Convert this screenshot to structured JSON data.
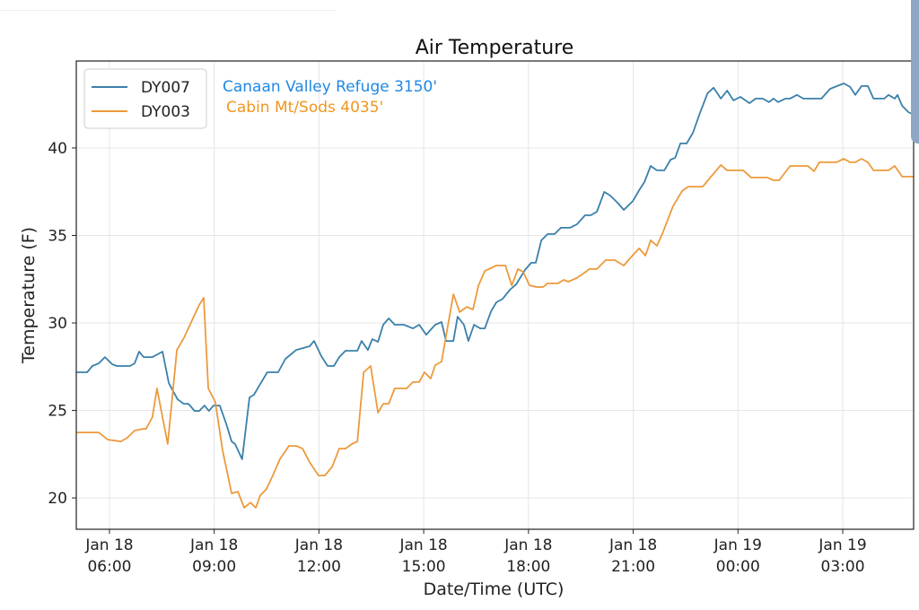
{
  "chart_data": {
    "type": "line",
    "title": "Air Temperature",
    "xlabel": "Date/Time (UTC)",
    "ylabel": "Temperature (F)",
    "xlim": [
      5.05,
      29.03
    ],
    "ylim": [
      18.21,
      44.97
    ],
    "x_unit": "hours since Jan 18 00:00 UTC",
    "grid": true,
    "legend_placement": "top-left",
    "yticks": [
      20,
      25,
      30,
      35,
      40
    ],
    "ytick_labels": [
      "20",
      "25",
      "30",
      "35",
      "40"
    ],
    "xticks": [
      {
        "value": 6,
        "line1": "Jan 18",
        "line2": "06:00"
      },
      {
        "value": 9,
        "line1": "Jan 18",
        "line2": "09:00"
      },
      {
        "value": 12,
        "line1": "Jan 18",
        "line2": "12:00"
      },
      {
        "value": 15,
        "line1": "Jan 18",
        "line2": "15:00"
      },
      {
        "value": 18,
        "line1": "Jan 18",
        "line2": "18:00"
      },
      {
        "value": 21,
        "line1": "Jan 18",
        "line2": "21:00"
      },
      {
        "value": 24,
        "line1": "Jan 19",
        "line2": "00:00"
      },
      {
        "value": 27,
        "line1": "Jan 19",
        "line2": "03:00"
      }
    ],
    "annotations": [
      {
        "text": "Canaan Valley Refuge 3150'",
        "color": "#1e88e5"
      },
      {
        "text": "Cabin Mt/Sods 4035'",
        "color": "#f0961e"
      }
    ],
    "series": [
      {
        "name": "DY007",
        "color": "#3b80aa",
        "points": [
          [
            5.05,
            27.18
          ],
          [
            5.36,
            27.18
          ],
          [
            5.51,
            27.54
          ],
          [
            5.69,
            27.69
          ],
          [
            5.87,
            28.05
          ],
          [
            6.08,
            27.64
          ],
          [
            6.21,
            27.54
          ],
          [
            6.59,
            27.54
          ],
          [
            6.72,
            27.69
          ],
          [
            6.85,
            28.36
          ],
          [
            6.98,
            28.05
          ],
          [
            7.23,
            28.05
          ],
          [
            7.52,
            28.36
          ],
          [
            7.7,
            26.56
          ],
          [
            7.95,
            25.64
          ],
          [
            8.13,
            25.38
          ],
          [
            8.26,
            25.38
          ],
          [
            8.44,
            24.97
          ],
          [
            8.57,
            24.97
          ],
          [
            8.72,
            25.28
          ],
          [
            8.85,
            24.97
          ],
          [
            8.98,
            25.28
          ],
          [
            9.16,
            25.28
          ],
          [
            9.34,
            24.26
          ],
          [
            9.5,
            23.23
          ],
          [
            9.6,
            23.08
          ],
          [
            9.8,
            22.21
          ],
          [
            10.01,
            25.74
          ],
          [
            10.14,
            25.9
          ],
          [
            10.32,
            26.51
          ],
          [
            10.52,
            27.18
          ],
          [
            10.83,
            27.18
          ],
          [
            11.04,
            27.95
          ],
          [
            11.35,
            28.46
          ],
          [
            11.73,
            28.67
          ],
          [
            11.86,
            28.97
          ],
          [
            12.07,
            28.1
          ],
          [
            12.25,
            27.54
          ],
          [
            12.43,
            27.54
          ],
          [
            12.58,
            28.05
          ],
          [
            12.76,
            28.41
          ],
          [
            13.1,
            28.41
          ],
          [
            13.22,
            28.97
          ],
          [
            13.4,
            28.46
          ],
          [
            13.53,
            29.08
          ],
          [
            13.69,
            28.92
          ],
          [
            13.84,
            29.9
          ],
          [
            14.0,
            30.26
          ],
          [
            14.17,
            29.9
          ],
          [
            14.43,
            29.9
          ],
          [
            14.69,
            29.69
          ],
          [
            14.87,
            29.9
          ],
          [
            15.07,
            29.33
          ],
          [
            15.33,
            29.9
          ],
          [
            15.51,
            30.05
          ],
          [
            15.64,
            28.97
          ],
          [
            15.85,
            28.97
          ],
          [
            15.97,
            30.36
          ],
          [
            16.15,
            29.9
          ],
          [
            16.28,
            28.97
          ],
          [
            16.44,
            29.9
          ],
          [
            16.62,
            29.69
          ],
          [
            16.75,
            29.69
          ],
          [
            16.93,
            30.67
          ],
          [
            17.08,
            31.18
          ],
          [
            17.26,
            31.38
          ],
          [
            17.47,
            31.9
          ],
          [
            17.65,
            32.21
          ],
          [
            17.9,
            33.03
          ],
          [
            18.08,
            33.44
          ],
          [
            18.21,
            33.44
          ],
          [
            18.37,
            34.72
          ],
          [
            18.55,
            35.08
          ],
          [
            18.75,
            35.08
          ],
          [
            18.93,
            35.44
          ],
          [
            19.19,
            35.44
          ],
          [
            19.39,
            35.64
          ],
          [
            19.62,
            36.15
          ],
          [
            19.78,
            36.15
          ],
          [
            19.96,
            36.36
          ],
          [
            20.17,
            37.49
          ],
          [
            20.34,
            37.28
          ],
          [
            20.55,
            36.87
          ],
          [
            20.73,
            36.46
          ],
          [
            20.99,
            36.97
          ],
          [
            21.17,
            37.59
          ],
          [
            21.32,
            38.05
          ],
          [
            21.5,
            38.97
          ],
          [
            21.68,
            38.72
          ],
          [
            21.89,
            38.72
          ],
          [
            22.07,
            39.33
          ],
          [
            22.2,
            39.44
          ],
          [
            22.35,
            40.26
          ],
          [
            22.53,
            40.26
          ],
          [
            22.71,
            40.87
          ],
          [
            22.92,
            42.05
          ],
          [
            23.13,
            43.13
          ],
          [
            23.3,
            43.44
          ],
          [
            23.51,
            42.82
          ],
          [
            23.69,
            43.28
          ],
          [
            23.87,
            42.72
          ],
          [
            24.07,
            42.92
          ],
          [
            24.33,
            42.56
          ],
          [
            24.51,
            42.82
          ],
          [
            24.71,
            42.82
          ],
          [
            24.89,
            42.62
          ],
          [
            25.02,
            42.82
          ],
          [
            25.15,
            42.62
          ],
          [
            25.36,
            42.82
          ],
          [
            25.49,
            42.82
          ],
          [
            25.69,
            43.03
          ],
          [
            25.87,
            42.82
          ],
          [
            26.39,
            42.82
          ],
          [
            26.64,
            43.38
          ],
          [
            27.03,
            43.69
          ],
          [
            27.21,
            43.49
          ],
          [
            27.36,
            43.03
          ],
          [
            27.54,
            43.54
          ],
          [
            27.72,
            43.54
          ],
          [
            27.88,
            42.82
          ],
          [
            28.19,
            42.82
          ],
          [
            28.31,
            43.03
          ],
          [
            28.49,
            42.82
          ],
          [
            28.57,
            43.03
          ],
          [
            28.7,
            42.41
          ],
          [
            28.88,
            42.05
          ],
          [
            29.03,
            41.9
          ]
        ]
      },
      {
        "name": "DY003",
        "color": "#ec9a3c",
        "points": [
          [
            5.05,
            23.74
          ],
          [
            5.69,
            23.74
          ],
          [
            5.95,
            23.33
          ],
          [
            6.33,
            23.23
          ],
          [
            6.51,
            23.44
          ],
          [
            6.72,
            23.85
          ],
          [
            6.98,
            23.95
          ],
          [
            7.05,
            23.95
          ],
          [
            7.23,
            24.62
          ],
          [
            7.36,
            26.26
          ],
          [
            7.67,
            23.08
          ],
          [
            7.93,
            28.46
          ],
          [
            8.13,
            29.13
          ],
          [
            8.39,
            30.26
          ],
          [
            8.57,
            31.03
          ],
          [
            8.7,
            31.44
          ],
          [
            8.83,
            26.26
          ],
          [
            9.03,
            25.49
          ],
          [
            9.24,
            22.72
          ],
          [
            9.5,
            20.26
          ],
          [
            9.68,
            20.36
          ],
          [
            9.86,
            19.44
          ],
          [
            10.04,
            19.74
          ],
          [
            10.19,
            19.44
          ],
          [
            10.32,
            20.15
          ],
          [
            10.5,
            20.51
          ],
          [
            10.7,
            21.38
          ],
          [
            10.88,
            22.21
          ],
          [
            11.14,
            22.97
          ],
          [
            11.35,
            22.97
          ],
          [
            11.53,
            22.82
          ],
          [
            11.73,
            22.05
          ],
          [
            11.99,
            21.28
          ],
          [
            12.17,
            21.28
          ],
          [
            12.38,
            21.79
          ],
          [
            12.58,
            22.82
          ],
          [
            12.76,
            22.82
          ],
          [
            12.94,
            23.08
          ],
          [
            13.1,
            23.23
          ],
          [
            13.28,
            27.18
          ],
          [
            13.48,
            27.54
          ],
          [
            13.69,
            24.87
          ],
          [
            13.84,
            25.38
          ],
          [
            14.0,
            25.38
          ],
          [
            14.17,
            26.26
          ],
          [
            14.51,
            26.26
          ],
          [
            14.69,
            26.62
          ],
          [
            14.87,
            26.62
          ],
          [
            15.02,
            27.18
          ],
          [
            15.2,
            26.82
          ],
          [
            15.33,
            27.59
          ],
          [
            15.51,
            27.79
          ],
          [
            15.85,
            31.64
          ],
          [
            16.03,
            30.62
          ],
          [
            16.23,
            30.92
          ],
          [
            16.41,
            30.77
          ],
          [
            16.57,
            32.15
          ],
          [
            16.75,
            32.97
          ],
          [
            17.08,
            33.28
          ],
          [
            17.34,
            33.28
          ],
          [
            17.52,
            32.15
          ],
          [
            17.7,
            33.08
          ],
          [
            17.85,
            32.92
          ],
          [
            18.03,
            32.15
          ],
          [
            18.24,
            32.05
          ],
          [
            18.42,
            32.05
          ],
          [
            18.54,
            32.26
          ],
          [
            18.85,
            32.26
          ],
          [
            19.01,
            32.46
          ],
          [
            19.14,
            32.36
          ],
          [
            19.37,
            32.56
          ],
          [
            19.57,
            32.82
          ],
          [
            19.75,
            33.08
          ],
          [
            19.96,
            33.08
          ],
          [
            20.21,
            33.59
          ],
          [
            20.47,
            33.59
          ],
          [
            20.73,
            33.28
          ],
          [
            20.86,
            33.59
          ],
          [
            21.17,
            34.26
          ],
          [
            21.35,
            33.85
          ],
          [
            21.5,
            34.72
          ],
          [
            21.68,
            34.41
          ],
          [
            21.84,
            35.13
          ],
          [
            22.14,
            36.67
          ],
          [
            22.4,
            37.54
          ],
          [
            22.58,
            37.79
          ],
          [
            22.86,
            37.79
          ],
          [
            22.99,
            37.79
          ],
          [
            23.51,
            39.03
          ],
          [
            23.69,
            38.72
          ],
          [
            24.15,
            38.72
          ],
          [
            24.38,
            38.31
          ],
          [
            24.84,
            38.31
          ],
          [
            25.02,
            38.15
          ],
          [
            25.18,
            38.15
          ],
          [
            25.49,
            38.97
          ],
          [
            26.0,
            38.97
          ],
          [
            26.18,
            38.67
          ],
          [
            26.33,
            39.18
          ],
          [
            26.82,
            39.18
          ],
          [
            27.03,
            39.38
          ],
          [
            27.21,
            39.18
          ],
          [
            27.36,
            39.18
          ],
          [
            27.54,
            39.38
          ],
          [
            27.72,
            39.18
          ],
          [
            27.88,
            38.72
          ],
          [
            28.31,
            38.72
          ],
          [
            28.49,
            38.97
          ],
          [
            28.7,
            38.36
          ],
          [
            29.03,
            38.36
          ]
        ]
      }
    ]
  }
}
